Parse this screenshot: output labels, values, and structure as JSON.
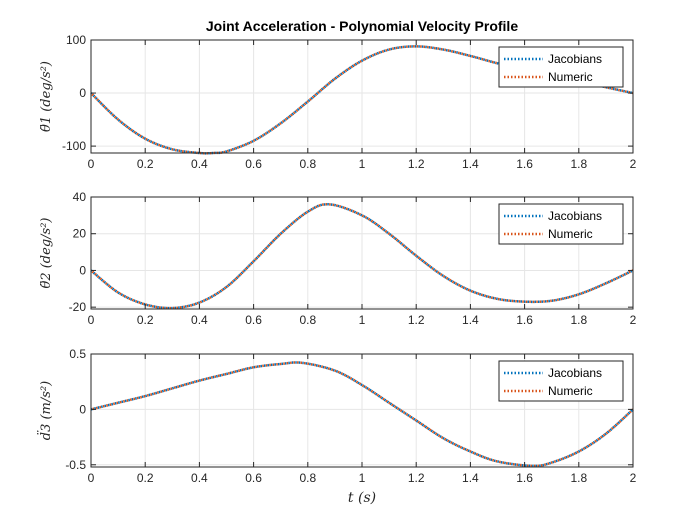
{
  "chart_data": [
    {
      "type": "line",
      "title": "Joint Acceleration - Polynomial Velocity Profile",
      "ylabel": "θ̈1 (deg/s²)",
      "xlabel": "",
      "xlim": [
        0,
        2
      ],
      "ylim": [
        -113,
        100
      ],
      "x_ticks": [
        0,
        0.2,
        0.4,
        0.6,
        0.8,
        1,
        1.2,
        1.4,
        1.6,
        1.8,
        2
      ],
      "y_ticks": [
        -100,
        0,
        100
      ],
      "grid": true,
      "legend_position": "top-right",
      "x": [
        0,
        0.1,
        0.2,
        0.3,
        0.4,
        0.45,
        0.5,
        0.6,
        0.7,
        0.8,
        0.9,
        1.0,
        1.1,
        1.2,
        1.3,
        1.4,
        1.5,
        1.6,
        1.7,
        1.8,
        1.9,
        2.0
      ],
      "series": [
        {
          "name": "Jacobians",
          "color": "#0072BD",
          "values": [
            0,
            -50,
            -86,
            -106,
            -113,
            -113,
            -110,
            -90,
            -57,
            -16,
            27,
            61,
            82,
            88,
            82,
            70,
            56,
            44,
            31,
            23,
            11,
            0
          ]
        },
        {
          "name": "Numeric",
          "color": "#D95319",
          "values": [
            0,
            -50,
            -86,
            -106,
            -113,
            -113,
            -110,
            -90,
            -57,
            -16,
            27,
            61,
            82,
            88,
            82,
            70,
            56,
            44,
            31,
            23,
            11,
            0
          ]
        }
      ]
    },
    {
      "type": "line",
      "title": "",
      "ylabel": "θ̈2 (deg/s²)",
      "xlabel": "",
      "xlim": [
        0,
        2
      ],
      "ylim": [
        -21,
        40
      ],
      "x_ticks": [
        0,
        0.2,
        0.4,
        0.6,
        0.8,
        1,
        1.2,
        1.4,
        1.6,
        1.8,
        2
      ],
      "y_ticks": [
        -20,
        0,
        20,
        40
      ],
      "grid": true,
      "legend_position": "top-right",
      "x": [
        0,
        0.1,
        0.2,
        0.3,
        0.4,
        0.5,
        0.6,
        0.7,
        0.8,
        0.88,
        1.0,
        1.1,
        1.2,
        1.3,
        1.4,
        1.5,
        1.6,
        1.7,
        1.8,
        1.9,
        2.0
      ],
      "series": [
        {
          "name": "Jacobians",
          "color": "#0072BD",
          "values": [
            0,
            -12,
            -18.5,
            -20.5,
            -17.5,
            -9,
            5,
            20,
            32,
            36,
            30,
            20,
            8,
            -3,
            -11,
            -15.5,
            -17,
            -16.5,
            -13,
            -7,
            0
          ]
        },
        {
          "name": "Numeric",
          "color": "#D95319",
          "values": [
            0,
            -12,
            -18.5,
            -20.5,
            -17.5,
            -9,
            5,
            20,
            32,
            36,
            30,
            20,
            8,
            -3,
            -11,
            -15.5,
            -17,
            -16.5,
            -13,
            -7,
            0
          ]
        }
      ]
    },
    {
      "type": "line",
      "title": "",
      "ylabel": "d̈3 (m/s²)",
      "xlabel": "t (s)",
      "xlim": [
        0,
        2
      ],
      "ylim": [
        -0.52,
        0.5
      ],
      "x_ticks": [
        0,
        0.2,
        0.4,
        0.6,
        0.8,
        1,
        1.2,
        1.4,
        1.6,
        1.8,
        2
      ],
      "y_ticks": [
        -0.5,
        0,
        0.5
      ],
      "grid": true,
      "legend_position": "top-right",
      "x": [
        0,
        0.1,
        0.2,
        0.3,
        0.4,
        0.5,
        0.6,
        0.7,
        0.78,
        0.9,
        1.0,
        1.1,
        1.2,
        1.3,
        1.4,
        1.5,
        1.63,
        1.7,
        1.8,
        1.9,
        2.0
      ],
      "series": [
        {
          "name": "Jacobians",
          "color": "#0072BD",
          "values": [
            0,
            0.06,
            0.12,
            0.19,
            0.26,
            0.32,
            0.38,
            0.41,
            0.42,
            0.35,
            0.22,
            0.06,
            -0.1,
            -0.26,
            -0.38,
            -0.47,
            -0.51,
            -0.48,
            -0.38,
            -0.22,
            0
          ]
        },
        {
          "name": "Numeric",
          "color": "#D95319",
          "values": [
            0,
            0.06,
            0.12,
            0.19,
            0.26,
            0.32,
            0.38,
            0.41,
            0.42,
            0.35,
            0.22,
            0.06,
            -0.1,
            -0.26,
            -0.38,
            -0.47,
            -0.51,
            -0.48,
            -0.38,
            -0.22,
            0
          ]
        }
      ]
    }
  ]
}
